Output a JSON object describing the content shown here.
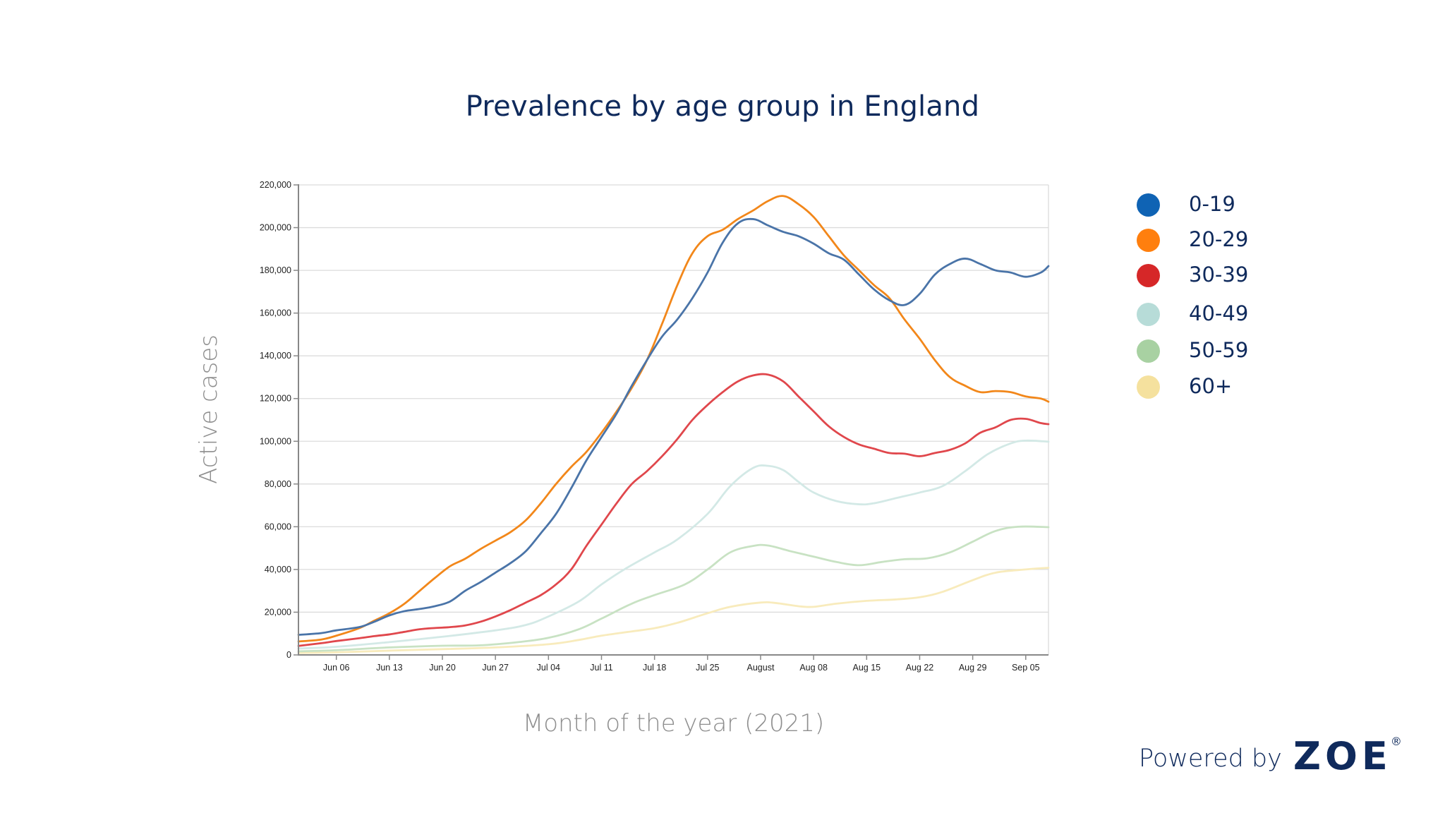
{
  "chart_data": {
    "type": "line",
    "title": "Prevalence by age group in England",
    "xlabel": "Month of the year (2021)",
    "ylabel": "Active cases",
    "ylim": [
      0,
      220000
    ],
    "xlim": [
      "2021-06-01",
      "2021-09-08"
    ],
    "grid": true,
    "legend_position": "right",
    "y_ticks": [
      {
        "value": 0,
        "label": "0"
      },
      {
        "value": 20000,
        "label": "20,000"
      },
      {
        "value": 40000,
        "label": "40,000"
      },
      {
        "value": 60000,
        "label": "60,000"
      },
      {
        "value": 80000,
        "label": "80,000"
      },
      {
        "value": 100000,
        "label": "100,000"
      },
      {
        "value": 120000,
        "label": "120,000"
      },
      {
        "value": 140000,
        "label": "140,000"
      },
      {
        "value": 160000,
        "label": "160,000"
      },
      {
        "value": 180000,
        "label": "180,000"
      },
      {
        "value": 200000,
        "label": "200,000"
      },
      {
        "value": 220000,
        "label": "220,000"
      }
    ],
    "x_ticks": [
      {
        "date": "2021-06-06",
        "label": "Jun 06"
      },
      {
        "date": "2021-06-13",
        "label": "Jun 13"
      },
      {
        "date": "2021-06-20",
        "label": "Jun 20"
      },
      {
        "date": "2021-06-27",
        "label": "Jun 27"
      },
      {
        "date": "2021-07-04",
        "label": "Jul 04"
      },
      {
        "date": "2021-07-11",
        "label": "Jul 11"
      },
      {
        "date": "2021-07-18",
        "label": "Jul 18"
      },
      {
        "date": "2021-07-25",
        "label": "Jul 25"
      },
      {
        "date": "2021-08-01",
        "label": "August"
      },
      {
        "date": "2021-08-08",
        "label": "Aug 08"
      },
      {
        "date": "2021-08-15",
        "label": "Aug 15"
      },
      {
        "date": "2021-08-22",
        "label": "Aug 22"
      },
      {
        "date": "2021-08-29",
        "label": "Aug 29"
      },
      {
        "date": "2021-09-05",
        "label": "Sep 05"
      }
    ],
    "series": [
      {
        "name": "0-19",
        "color": "#4a74a8",
        "legend_color": "#0f63b4",
        "x": [
          "2021-06-01",
          "2021-06-04",
          "2021-06-06",
          "2021-06-09",
          "2021-06-11",
          "2021-06-13",
          "2021-06-15",
          "2021-06-17",
          "2021-06-19",
          "2021-06-21",
          "2021-06-23",
          "2021-06-25",
          "2021-06-27",
          "2021-06-29",
          "2021-07-01",
          "2021-07-03",
          "2021-07-05",
          "2021-07-07",
          "2021-07-09",
          "2021-07-11",
          "2021-07-13",
          "2021-07-15",
          "2021-07-17",
          "2021-07-19",
          "2021-07-21",
          "2021-07-23",
          "2021-07-25",
          "2021-07-27",
          "2021-07-29",
          "2021-07-31",
          "2021-08-02",
          "2021-08-04",
          "2021-08-06",
          "2021-08-08",
          "2021-08-10",
          "2021-08-12",
          "2021-08-14",
          "2021-08-16",
          "2021-08-18",
          "2021-08-20",
          "2021-08-22",
          "2021-08-24",
          "2021-08-26",
          "2021-08-28",
          "2021-08-30",
          "2021-09-01",
          "2021-09-03",
          "2021-09-05",
          "2021-09-07",
          "2021-09-08"
        ],
        "values": [
          9400,
          10200,
          11500,
          13000,
          15500,
          18500,
          20500,
          21500,
          22800,
          25000,
          30000,
          34000,
          38500,
          43000,
          48500,
          57000,
          66000,
          78000,
          91000,
          102000,
          113000,
          126000,
          138000,
          149000,
          157000,
          167000,
          179000,
          193000,
          202000,
          204000,
          201000,
          198000,
          196000,
          192500,
          188000,
          185000,
          178000,
          171000,
          166000,
          163800,
          169000,
          178000,
          183000,
          185500,
          183000,
          180000,
          179000,
          177000,
          179000,
          182000
        ]
      },
      {
        "name": "20-29",
        "color": "#f2871a",
        "legend_color": "#ff7f0e",
        "x": [
          "2021-06-01",
          "2021-06-04",
          "2021-06-06",
          "2021-06-09",
          "2021-06-11",
          "2021-06-13",
          "2021-06-15",
          "2021-06-17",
          "2021-06-19",
          "2021-06-21",
          "2021-06-23",
          "2021-06-25",
          "2021-06-27",
          "2021-06-29",
          "2021-07-01",
          "2021-07-03",
          "2021-07-05",
          "2021-07-07",
          "2021-07-09",
          "2021-07-11",
          "2021-07-13",
          "2021-07-15",
          "2021-07-17",
          "2021-07-19",
          "2021-07-21",
          "2021-07-23",
          "2021-07-25",
          "2021-07-27",
          "2021-07-29",
          "2021-07-31",
          "2021-08-02",
          "2021-08-04",
          "2021-08-06",
          "2021-08-08",
          "2021-08-10",
          "2021-08-12",
          "2021-08-14",
          "2021-08-16",
          "2021-08-18",
          "2021-08-20",
          "2021-08-22",
          "2021-08-24",
          "2021-08-26",
          "2021-08-28",
          "2021-08-30",
          "2021-09-01",
          "2021-09-03",
          "2021-09-05",
          "2021-09-07",
          "2021-09-08"
        ],
        "values": [
          6300,
          7200,
          9000,
          12500,
          16000,
          19500,
          24000,
          30000,
          36000,
          41500,
          45000,
          49500,
          53500,
          57500,
          63000,
          71000,
          80000,
          88000,
          95000,
          104000,
          114000,
          125000,
          138000,
          155000,
          173000,
          188000,
          196000,
          199000,
          204000,
          208000,
          212500,
          214800,
          211000,
          205000,
          196000,
          187000,
          180000,
          173000,
          167000,
          157000,
          148000,
          138000,
          130000,
          126000,
          123000,
          123500,
          123000,
          121000,
          120000,
          118500
        ]
      },
      {
        "name": "30-39",
        "color": "#e0474c",
        "legend_color": "#d62728",
        "x": [
          "2021-06-01",
          "2021-06-04",
          "2021-06-06",
          "2021-06-09",
          "2021-06-11",
          "2021-06-13",
          "2021-06-15",
          "2021-06-17",
          "2021-06-19",
          "2021-06-21",
          "2021-06-23",
          "2021-06-25",
          "2021-06-27",
          "2021-06-29",
          "2021-07-01",
          "2021-07-03",
          "2021-07-05",
          "2021-07-07",
          "2021-07-09",
          "2021-07-11",
          "2021-07-13",
          "2021-07-15",
          "2021-07-17",
          "2021-07-19",
          "2021-07-21",
          "2021-07-23",
          "2021-07-25",
          "2021-07-27",
          "2021-07-29",
          "2021-07-31",
          "2021-08-02",
          "2021-08-04",
          "2021-08-06",
          "2021-08-08",
          "2021-08-10",
          "2021-08-12",
          "2021-08-14",
          "2021-08-16",
          "2021-08-18",
          "2021-08-20",
          "2021-08-22",
          "2021-08-24",
          "2021-08-26",
          "2021-08-28",
          "2021-08-30",
          "2021-09-01",
          "2021-09-03",
          "2021-09-05",
          "2021-09-07",
          "2021-09-08"
        ],
        "values": [
          4200,
          5500,
          6500,
          7800,
          8800,
          9600,
          10800,
          12000,
          12600,
          13000,
          13800,
          15500,
          18000,
          21000,
          24500,
          28000,
          33000,
          40000,
          51000,
          61000,
          71000,
          80000,
          86000,
          93000,
          101000,
          110000,
          117000,
          123000,
          128000,
          130800,
          131200,
          128000,
          121000,
          114000,
          107000,
          102000,
          98500,
          96500,
          94500,
          94200,
          93000,
          94500,
          96000,
          99000,
          104000,
          106500,
          110000,
          110500,
          108500,
          108000
        ]
      },
      {
        "name": "40-49",
        "color": "#d3e9e6",
        "legend_color": "#b7dcd8",
        "x": [
          "2021-06-01",
          "2021-06-06",
          "2021-06-13",
          "2021-06-20",
          "2021-06-27",
          "2021-07-01",
          "2021-07-04",
          "2021-07-08",
          "2021-07-11",
          "2021-07-14",
          "2021-07-18",
          "2021-07-21",
          "2021-07-25",
          "2021-07-28",
          "2021-07-31",
          "2021-08-02",
          "2021-08-04",
          "2021-08-06",
          "2021-08-08",
          "2021-08-11",
          "2021-08-14",
          "2021-08-16",
          "2021-08-19",
          "2021-08-22",
          "2021-08-25",
          "2021-08-28",
          "2021-08-31",
          "2021-09-03",
          "2021-09-05",
          "2021-09-08"
        ],
        "values": [
          3000,
          3800,
          6000,
          8500,
          11500,
          14000,
          18000,
          25000,
          33000,
          40000,
          48000,
          54000,
          66000,
          79000,
          87500,
          88500,
          86500,
          81000,
          76000,
          72000,
          70500,
          71000,
          73500,
          76000,
          79000,
          86000,
          94000,
          99000,
          100300,
          99800
        ]
      },
      {
        "name": "50-59",
        "color": "#c8e2c3",
        "legend_color": "#a8d1a2",
        "x": [
          "2021-06-01",
          "2021-06-06",
          "2021-06-13",
          "2021-06-20",
          "2021-06-25",
          "2021-06-30",
          "2021-07-04",
          "2021-07-08",
          "2021-07-11",
          "2021-07-15",
          "2021-07-18",
          "2021-07-22",
          "2021-07-25",
          "2021-07-28",
          "2021-07-31",
          "2021-08-02",
          "2021-08-05",
          "2021-08-08",
          "2021-08-11",
          "2021-08-14",
          "2021-08-17",
          "2021-08-20",
          "2021-08-23",
          "2021-08-26",
          "2021-08-29",
          "2021-09-01",
          "2021-09-04",
          "2021-09-08"
        ],
        "values": [
          1700,
          2200,
          3500,
          4300,
          4500,
          6000,
          8000,
          12000,
          17000,
          24000,
          28000,
          33000,
          40000,
          48000,
          51000,
          51200,
          48500,
          46000,
          43500,
          42000,
          43500,
          44800,
          45200,
          48000,
          53000,
          58000,
          60000,
          59800
        ]
      },
      {
        "name": "60+",
        "color": "#f8ebbc",
        "legend_color": "#f5e19e",
        "x": [
          "2021-06-01",
          "2021-06-06",
          "2021-06-13",
          "2021-06-20",
          "2021-06-27",
          "2021-07-04",
          "2021-07-08",
          "2021-07-11",
          "2021-07-15",
          "2021-07-18",
          "2021-07-21",
          "2021-07-25",
          "2021-07-28",
          "2021-08-01",
          "2021-08-03",
          "2021-08-06",
          "2021-08-08",
          "2021-08-11",
          "2021-08-15",
          "2021-08-19",
          "2021-08-22",
          "2021-08-25",
          "2021-08-29",
          "2021-09-01",
          "2021-09-05",
          "2021-09-08"
        ],
        "values": [
          900,
          1200,
          2000,
          2700,
          3500,
          5000,
          7000,
          9000,
          11000,
          12500,
          15000,
          19500,
          22500,
          24500,
          24300,
          22800,
          22500,
          24000,
          25300,
          26000,
          27000,
          29500,
          35000,
          38500,
          40000,
          40800
        ]
      }
    ]
  },
  "footer": {
    "powered_by": "Powered by",
    "brand": "ZOE",
    "registered_mark": "®"
  }
}
